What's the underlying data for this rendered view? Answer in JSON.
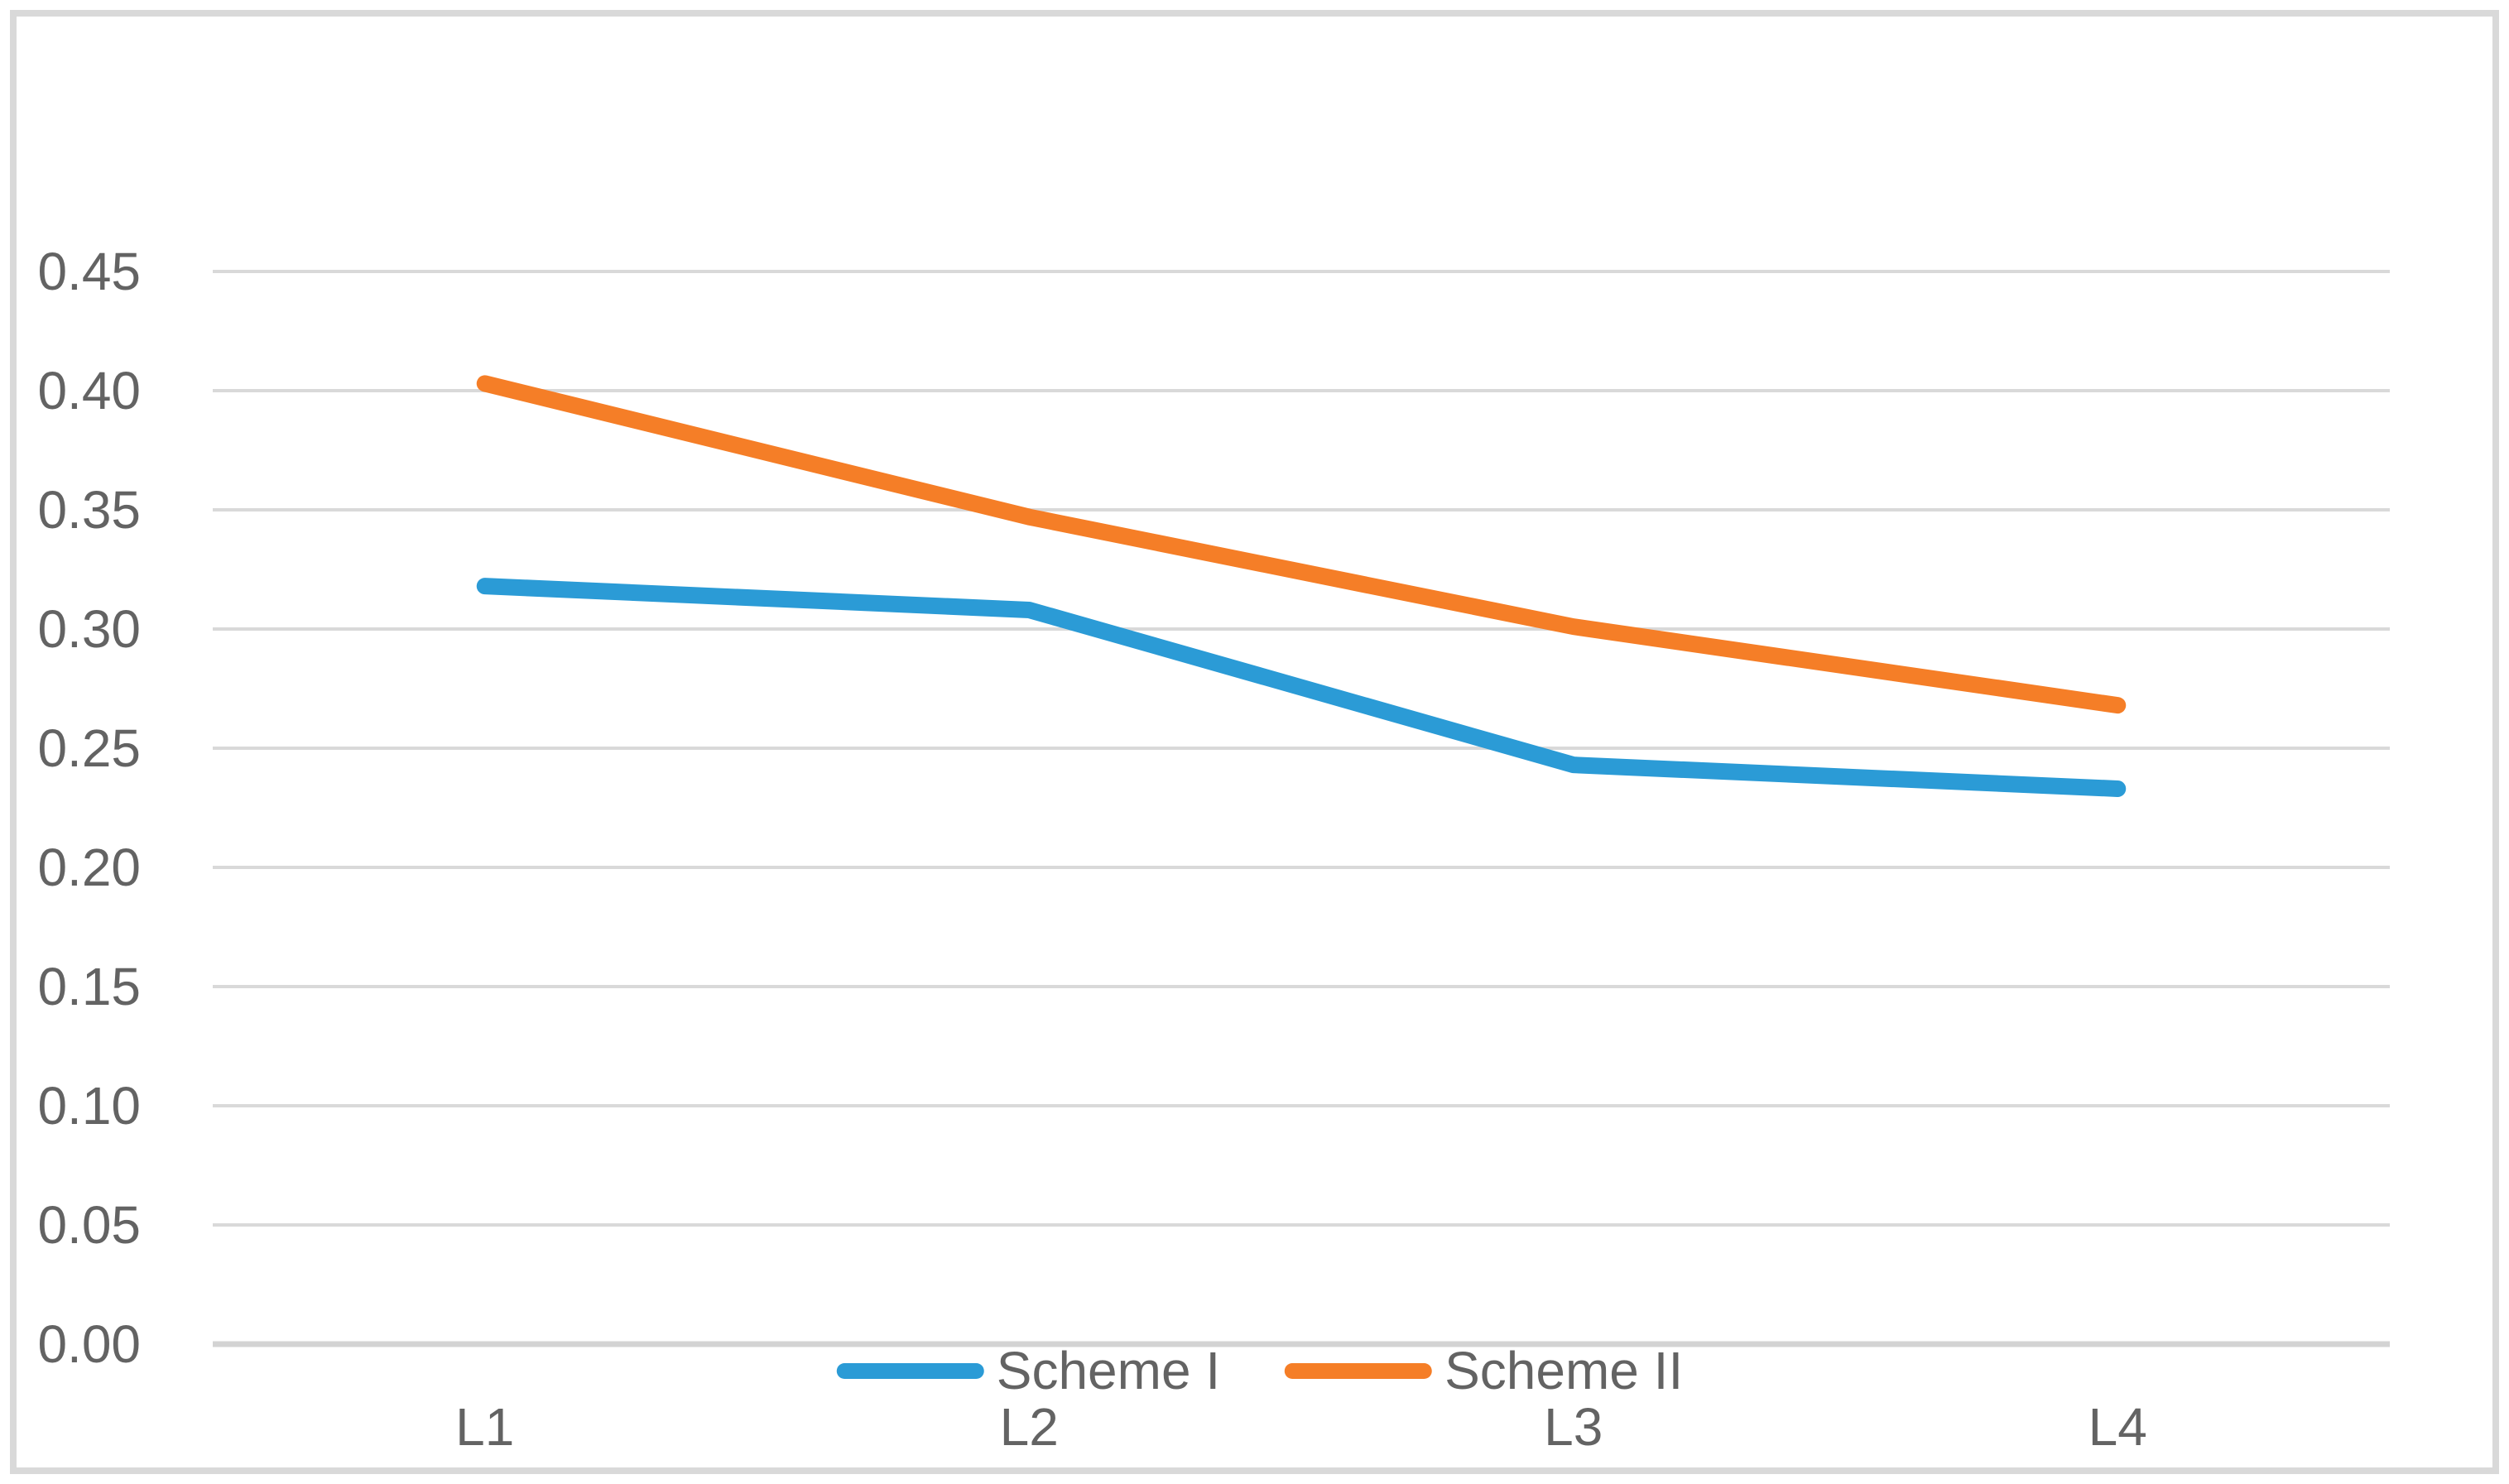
{
  "chart_data": {
    "type": "line",
    "title": "",
    "xlabel": "",
    "ylabel": "",
    "categories": [
      "L1",
      "L2",
      "L3",
      "L4"
    ],
    "series": [
      {
        "name": "Scheme I",
        "color": "#2B9BD6",
        "values": [
          0.318,
          0.308,
          0.243,
          0.233
        ]
      },
      {
        "name": "Scheme II",
        "color": "#F57E27",
        "values": [
          0.403,
          0.347,
          0.301,
          0.268
        ]
      }
    ],
    "ytick_labels": [
      "0.00",
      "0.05",
      "0.10",
      "0.15",
      "0.20",
      "0.25",
      "0.30",
      "0.35",
      "0.40",
      "0.45"
    ],
    "ylim": [
      0,
      0.45
    ],
    "grid": "horizontal-only",
    "gridline_color": "#D9D9D9",
    "axis_line_color": "#D3D3D3",
    "label_color": "#636363",
    "frame_border_color": "#D9D9D9",
    "legend_position": "bottom-center",
    "line_style": "solid, rounded caps"
  }
}
